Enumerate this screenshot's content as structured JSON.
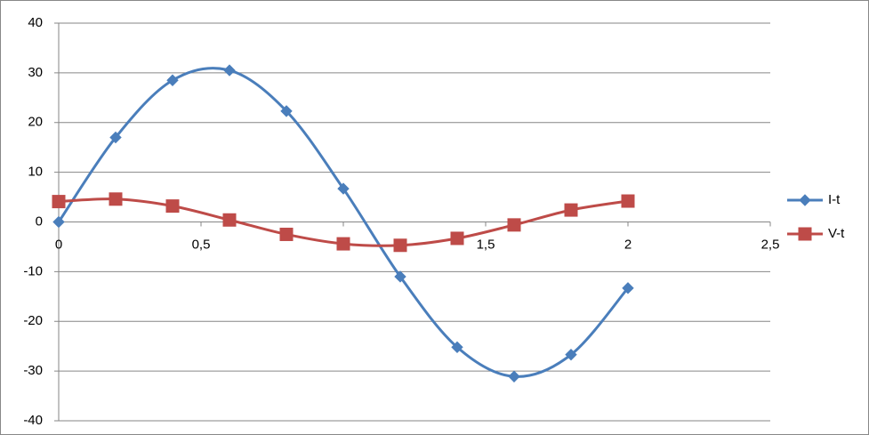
{
  "chart_data": {
    "type": "scatter",
    "x": [
      0,
      0.2,
      0.4,
      0.6,
      0.8,
      1,
      1.2,
      1.4,
      1.6,
      1.8,
      2
    ],
    "series": [
      {
        "name": "I-t",
        "color": "#4a7ebb",
        "marker": "diamond",
        "values": [
          0,
          17,
          28.5,
          30.5,
          22.3,
          6.7,
          -11,
          -25.2,
          -31.1,
          -26.7,
          -13.3
        ]
      },
      {
        "name": "V-t",
        "color": "#be4b48",
        "marker": "square",
        "values": [
          4.1,
          4.6,
          3.2,
          0.4,
          -2.5,
          -4.4,
          -4.7,
          -3.3,
          -0.6,
          2.4,
          4.2
        ]
      }
    ],
    "xlim": [
      0,
      2.5
    ],
    "xticks": [
      0,
      {
        "value": 0.5,
        "label": "0,5"
      },
      1,
      {
        "value": 1.5,
        "label": "1,5"
      },
      2,
      {
        "value": 2.5,
        "label": "2,5"
      }
    ],
    "ylim": [
      -40,
      40
    ],
    "yticks": [
      -40,
      -30,
      -20,
      -10,
      0,
      10,
      20,
      30,
      40
    ],
    "grid": true,
    "legend": "right"
  }
}
